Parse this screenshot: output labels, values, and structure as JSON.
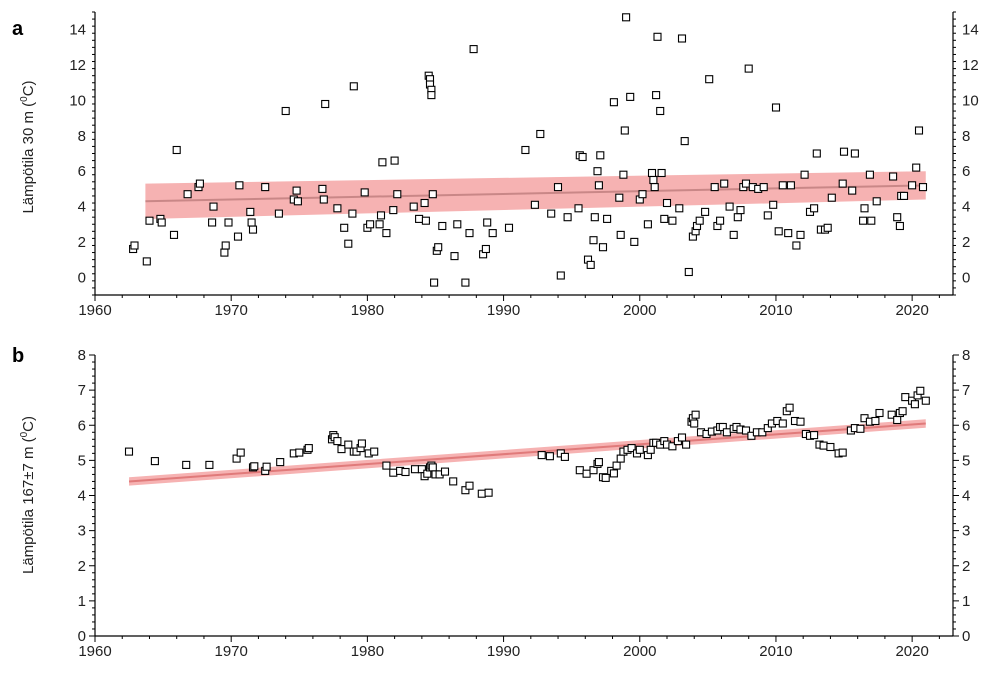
{
  "chart_data": [
    {
      "type": "scatter",
      "panel_label": "a",
      "ylabel": "Lämpötila 30 m (",
      "ylabel_sup": "0",
      "ylabel_unit": "C)",
      "xlim": [
        1960,
        2023
      ],
      "ylim": [
        -1,
        15
      ],
      "x_ticks": [
        1960,
        1970,
        1980,
        1990,
        2000,
        2010,
        2020
      ],
      "y_ticks": [
        0,
        2,
        4,
        6,
        8,
        10,
        12,
        14
      ],
      "trend": {
        "x": [
          1963.7,
          2021
        ],
        "y": [
          4.3,
          5.2
        ],
        "band_halfwidth_start": 1.0,
        "band_halfwidth_end": 0.8
      },
      "colors": {
        "trend": "#c98787",
        "band": "#f4a4a4",
        "points": "#000000"
      },
      "points": [
        [
          1962.8,
          1.6
        ],
        [
          1962.9,
          1.8
        ],
        [
          1963.8,
          0.9
        ],
        [
          1964.0,
          3.2
        ],
        [
          1964.8,
          3.3
        ],
        [
          1964.9,
          3.1
        ],
        [
          1965.8,
          2.4
        ],
        [
          1966.0,
          7.2
        ],
        [
          1966.8,
          4.7
        ],
        [
          1967.6,
          5.1
        ],
        [
          1967.7,
          5.3
        ],
        [
          1968.6,
          3.1
        ],
        [
          1968.7,
          4.0
        ],
        [
          1969.5,
          1.4
        ],
        [
          1969.6,
          1.8
        ],
        [
          1969.8,
          3.1
        ],
        [
          1970.5,
          2.3
        ],
        [
          1970.6,
          5.2
        ],
        [
          1971.4,
          3.7
        ],
        [
          1971.5,
          3.1
        ],
        [
          1971.6,
          2.7
        ],
        [
          1972.5,
          5.1
        ],
        [
          1973.5,
          3.6
        ],
        [
          1974.0,
          9.4
        ],
        [
          1974.6,
          4.4
        ],
        [
          1974.8,
          4.9
        ],
        [
          1974.9,
          4.3
        ],
        [
          1976.7,
          5.0
        ],
        [
          1976.8,
          4.4
        ],
        [
          1976.9,
          9.8
        ],
        [
          1977.8,
          3.9
        ],
        [
          1978.3,
          2.8
        ],
        [
          1978.6,
          1.9
        ],
        [
          1978.9,
          3.6
        ],
        [
          1979.0,
          10.8
        ],
        [
          1979.8,
          4.8
        ],
        [
          1980.0,
          2.8
        ],
        [
          1980.2,
          3.0
        ],
        [
          1980.9,
          3.0
        ],
        [
          1981.0,
          3.5
        ],
        [
          1981.1,
          6.5
        ],
        [
          1981.4,
          2.5
        ],
        [
          1981.9,
          3.8
        ],
        [
          1982.0,
          6.6
        ],
        [
          1982.2,
          4.7
        ],
        [
          1983.4,
          4.0
        ],
        [
          1983.8,
          3.3
        ],
        [
          1984.2,
          4.2
        ],
        [
          1984.3,
          3.2
        ],
        [
          1984.5,
          11.4
        ],
        [
          1984.6,
          11.2
        ],
        [
          1984.6,
          10.9
        ],
        [
          1984.7,
          10.6
        ],
        [
          1984.7,
          10.3
        ],
        [
          1984.8,
          4.7
        ],
        [
          1984.9,
          -0.3
        ],
        [
          1985.1,
          1.5
        ],
        [
          1985.2,
          1.7
        ],
        [
          1985.5,
          2.9
        ],
        [
          1986.4,
          1.2
        ],
        [
          1986.6,
          3.0
        ],
        [
          1987.2,
          -0.3
        ],
        [
          1987.5,
          2.5
        ],
        [
          1987.8,
          12.9
        ],
        [
          1988.5,
          1.3
        ],
        [
          1988.7,
          1.6
        ],
        [
          1988.8,
          3.1
        ],
        [
          1989.2,
          2.5
        ],
        [
          1990.4,
          2.8
        ],
        [
          1991.6,
          7.2
        ],
        [
          1992.3,
          4.1
        ],
        [
          1992.7,
          8.1
        ],
        [
          1993.5,
          3.6
        ],
        [
          1994.0,
          5.1
        ],
        [
          1994.2,
          0.1
        ],
        [
          1994.7,
          3.4
        ],
        [
          1995.5,
          3.9
        ],
        [
          1995.6,
          6.9
        ],
        [
          1995.8,
          6.8
        ],
        [
          1996.2,
          1.0
        ],
        [
          1996.4,
          0.7
        ],
        [
          1996.6,
          2.1
        ],
        [
          1996.7,
          3.4
        ],
        [
          1996.9,
          6.0
        ],
        [
          1997.0,
          5.2
        ],
        [
          1997.1,
          6.9
        ],
        [
          1997.3,
          1.7
        ],
        [
          1997.6,
          3.3
        ],
        [
          1998.1,
          9.9
        ],
        [
          1998.5,
          4.5
        ],
        [
          1998.6,
          2.4
        ],
        [
          1998.8,
          5.8
        ],
        [
          1998.9,
          8.3
        ],
        [
          1999.0,
          14.7
        ],
        [
          1999.3,
          10.2
        ],
        [
          1999.6,
          2.0
        ],
        [
          2000.0,
          4.4
        ],
        [
          2000.2,
          4.7
        ],
        [
          2000.6,
          3.0
        ],
        [
          2000.9,
          5.9
        ],
        [
          2001.0,
          5.5
        ],
        [
          2001.1,
          5.1
        ],
        [
          2001.2,
          10.3
        ],
        [
          2001.3,
          13.6
        ],
        [
          2001.5,
          9.4
        ],
        [
          2001.6,
          5.9
        ],
        [
          2001.8,
          3.3
        ],
        [
          2002.0,
          4.2
        ],
        [
          2002.4,
          3.2
        ],
        [
          2002.9,
          3.9
        ],
        [
          2003.1,
          13.5
        ],
        [
          2003.3,
          7.7
        ],
        [
          2003.6,
          0.3
        ],
        [
          2003.9,
          2.3
        ],
        [
          2004.1,
          2.6
        ],
        [
          2004.2,
          2.9
        ],
        [
          2004.4,
          3.2
        ],
        [
          2004.8,
          3.7
        ],
        [
          2005.1,
          11.2
        ],
        [
          2005.5,
          5.1
        ],
        [
          2005.7,
          2.9
        ],
        [
          2005.9,
          3.2
        ],
        [
          2006.2,
          5.3
        ],
        [
          2006.6,
          4.0
        ],
        [
          2006.9,
          2.4
        ],
        [
          2007.2,
          3.4
        ],
        [
          2007.4,
          3.8
        ],
        [
          2007.6,
          5.1
        ],
        [
          2007.8,
          5.3
        ],
        [
          2008.0,
          11.8
        ],
        [
          2008.3,
          5.1
        ],
        [
          2008.7,
          5.0
        ],
        [
          2009.1,
          5.1
        ],
        [
          2009.4,
          3.5
        ],
        [
          2009.8,
          4.1
        ],
        [
          2010.0,
          9.6
        ],
        [
          2010.2,
          2.6
        ],
        [
          2010.5,
          5.2
        ],
        [
          2010.9,
          2.5
        ],
        [
          2011.1,
          5.2
        ],
        [
          2011.5,
          1.8
        ],
        [
          2011.8,
          2.4
        ],
        [
          2012.1,
          5.8
        ],
        [
          2012.5,
          3.7
        ],
        [
          2012.8,
          3.9
        ],
        [
          2013.0,
          7.0
        ],
        [
          2013.3,
          2.7
        ],
        [
          2013.6,
          2.7
        ],
        [
          2013.8,
          2.8
        ],
        [
          2014.1,
          4.5
        ],
        [
          2014.9,
          5.3
        ],
        [
          2015.0,
          7.1
        ],
        [
          2015.6,
          4.9
        ],
        [
          2015.8,
          7.0
        ],
        [
          2016.4,
          3.2
        ],
        [
          2016.5,
          3.9
        ],
        [
          2016.9,
          5.8
        ],
        [
          2017.0,
          3.2
        ],
        [
          2017.4,
          4.3
        ],
        [
          2018.6,
          5.7
        ],
        [
          2018.9,
          3.4
        ],
        [
          2019.1,
          2.9
        ],
        [
          2019.2,
          4.6
        ],
        [
          2019.4,
          4.6
        ],
        [
          2020.0,
          5.2
        ],
        [
          2020.3,
          6.2
        ],
        [
          2020.5,
          8.3
        ],
        [
          2020.8,
          5.1
        ]
      ]
    },
    {
      "type": "scatter",
      "panel_label": "b",
      "ylabel": "Lämpötila 167±7 m (",
      "ylabel_sup": "0",
      "ylabel_unit": "C)",
      "xlim": [
        1960,
        2023
      ],
      "ylim": [
        0,
        8
      ],
      "x_ticks": [
        1960,
        1970,
        1980,
        1990,
        2000,
        2010,
        2020
      ],
      "y_ticks": [
        0,
        1,
        2,
        3,
        4,
        5,
        6,
        7,
        8
      ],
      "trend": {
        "x": [
          1962.5,
          2021
        ],
        "y": [
          4.4,
          6.05
        ],
        "band_halfwidth_start": 0.12,
        "band_halfwidth_end": 0.12
      },
      "colors": {
        "trend": "#e07a7a",
        "band": "#f4a4a4",
        "points": "#000000"
      },
      "points": [
        [
          1962.5,
          5.25
        ],
        [
          1964.4,
          4.98
        ],
        [
          1966.7,
          4.87
        ],
        [
          1968.4,
          4.87
        ],
        [
          1970.4,
          5.05
        ],
        [
          1970.7,
          5.22
        ],
        [
          1971.6,
          4.8
        ],
        [
          1971.7,
          4.83
        ],
        [
          1972.5,
          4.7
        ],
        [
          1972.6,
          4.82
        ],
        [
          1973.6,
          4.95
        ],
        [
          1974.6,
          5.2
        ],
        [
          1975.0,
          5.22
        ],
        [
          1975.6,
          5.3
        ],
        [
          1975.7,
          5.35
        ],
        [
          1977.4,
          5.6
        ],
        [
          1977.5,
          5.72
        ],
        [
          1977.6,
          5.66
        ],
        [
          1977.8,
          5.55
        ],
        [
          1978.1,
          5.32
        ],
        [
          1978.6,
          5.45
        ],
        [
          1979.0,
          5.25
        ],
        [
          1979.2,
          5.25
        ],
        [
          1979.5,
          5.35
        ],
        [
          1979.6,
          5.48
        ],
        [
          1980.1,
          5.2
        ],
        [
          1980.5,
          5.25
        ],
        [
          1981.4,
          4.85
        ],
        [
          1981.9,
          4.65
        ],
        [
          1982.4,
          4.7
        ],
        [
          1982.8,
          4.67
        ],
        [
          1983.5,
          4.75
        ],
        [
          1984.0,
          4.75
        ],
        [
          1984.2,
          4.55
        ],
        [
          1984.4,
          4.62
        ],
        [
          1984.6,
          4.8
        ],
        [
          1984.7,
          4.85
        ],
        [
          1984.8,
          4.8
        ],
        [
          1985.0,
          4.6
        ],
        [
          1985.3,
          4.6
        ],
        [
          1985.7,
          4.68
        ],
        [
          1986.3,
          4.4
        ],
        [
          1987.2,
          4.15
        ],
        [
          1987.5,
          4.28
        ],
        [
          1988.4,
          4.05
        ],
        [
          1988.9,
          4.08
        ],
        [
          1992.8,
          5.15
        ],
        [
          1993.4,
          5.12
        ],
        [
          1994.2,
          5.2
        ],
        [
          1994.5,
          5.1
        ],
        [
          1995.6,
          4.72
        ],
        [
          1996.1,
          4.62
        ],
        [
          1996.6,
          4.72
        ],
        [
          1996.9,
          4.9
        ],
        [
          1997.0,
          4.95
        ],
        [
          1997.3,
          4.52
        ],
        [
          1997.5,
          4.5
        ],
        [
          1997.9,
          4.7
        ],
        [
          1998.1,
          4.63
        ],
        [
          1998.3,
          4.85
        ],
        [
          1998.6,
          5.05
        ],
        [
          1998.8,
          5.25
        ],
        [
          1999.1,
          5.3
        ],
        [
          1999.4,
          5.35
        ],
        [
          1999.8,
          5.2
        ],
        [
          2000.0,
          5.3
        ],
        [
          2000.6,
          5.15
        ],
        [
          2000.8,
          5.3
        ],
        [
          2001.0,
          5.5
        ],
        [
          2001.2,
          5.5
        ],
        [
          2001.5,
          5.45
        ],
        [
          2001.8,
          5.55
        ],
        [
          2002.0,
          5.45
        ],
        [
          2002.4,
          5.4
        ],
        [
          2002.8,
          5.55
        ],
        [
          2003.1,
          5.65
        ],
        [
          2003.4,
          5.45
        ],
        [
          2003.8,
          6.1
        ],
        [
          2003.9,
          6.2
        ],
        [
          2004.0,
          6.05
        ],
        [
          2004.1,
          6.3
        ],
        [
          2004.5,
          5.8
        ],
        [
          2004.9,
          5.75
        ],
        [
          2005.3,
          5.82
        ],
        [
          2005.7,
          5.85
        ],
        [
          2005.9,
          5.95
        ],
        [
          2006.1,
          5.95
        ],
        [
          2006.4,
          5.8
        ],
        [
          2006.9,
          5.9
        ],
        [
          2007.1,
          5.95
        ],
        [
          2007.4,
          5.88
        ],
        [
          2007.8,
          5.85
        ],
        [
          2008.2,
          5.7
        ],
        [
          2008.6,
          5.8
        ],
        [
          2009.0,
          5.8
        ],
        [
          2009.4,
          5.92
        ],
        [
          2009.7,
          6.05
        ],
        [
          2010.1,
          6.12
        ],
        [
          2010.5,
          6.05
        ],
        [
          2010.8,
          6.4
        ],
        [
          2011.0,
          6.5
        ],
        [
          2011.4,
          6.12
        ],
        [
          2011.8,
          6.1
        ],
        [
          2012.2,
          5.75
        ],
        [
          2012.5,
          5.7
        ],
        [
          2012.8,
          5.72
        ],
        [
          2013.2,
          5.45
        ],
        [
          2013.5,
          5.42
        ],
        [
          2014.0,
          5.38
        ],
        [
          2014.6,
          5.2
        ],
        [
          2014.9,
          5.22
        ],
        [
          2015.5,
          5.85
        ],
        [
          2015.8,
          5.92
        ],
        [
          2016.2,
          5.9
        ],
        [
          2016.5,
          6.2
        ],
        [
          2016.9,
          6.1
        ],
        [
          2017.3,
          6.12
        ],
        [
          2017.6,
          6.35
        ],
        [
          2018.5,
          6.3
        ],
        [
          2018.9,
          6.15
        ],
        [
          2019.1,
          6.35
        ],
        [
          2019.3,
          6.4
        ],
        [
          2019.5,
          6.8
        ],
        [
          2020.0,
          6.7
        ],
        [
          2020.2,
          6.6
        ],
        [
          2020.4,
          6.85
        ],
        [
          2020.6,
          6.98
        ],
        [
          2021.0,
          6.7
        ]
      ]
    }
  ]
}
